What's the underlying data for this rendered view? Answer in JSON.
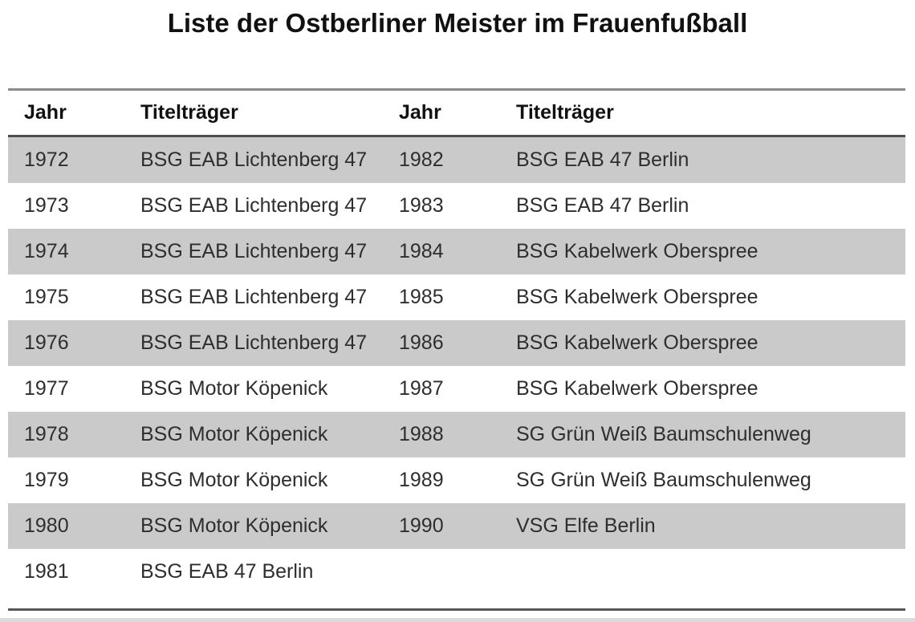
{
  "title": "Liste der Ostberliner Meister im Frauenfußball",
  "table": {
    "headers": [
      "Jahr",
      "Titelträger",
      "Jahr",
      "Titelträger"
    ],
    "rows": [
      {
        "year_left": "1972",
        "club_left": "BSG EAB Lichtenberg 47",
        "year_right": "1982",
        "club_right": "BSG EAB 47 Berlin"
      },
      {
        "year_left": "1973",
        "club_left": "BSG EAB Lichtenberg 47",
        "year_right": "1983",
        "club_right": "BSG EAB 47 Berlin"
      },
      {
        "year_left": "1974",
        "club_left": "BSG EAB Lichtenberg 47",
        "year_right": "1984",
        "club_right": "BSG Kabelwerk Oberspree"
      },
      {
        "year_left": "1975",
        "club_left": "BSG EAB Lichtenberg 47",
        "year_right": "1985",
        "club_right": "BSG Kabelwerk Oberspree"
      },
      {
        "year_left": "1976",
        "club_left": "BSG EAB Lichtenberg 47",
        "year_right": "1986",
        "club_right": "BSG Kabelwerk Oberspree"
      },
      {
        "year_left": "1977",
        "club_left": "BSG Motor Köpenick",
        "year_right": "1987",
        "club_right": "BSG Kabelwerk Oberspree"
      },
      {
        "year_left": "1978",
        "club_left": "BSG Motor Köpenick",
        "year_right": "1988",
        "club_right": "SG Grün Weiß Baumschulenweg"
      },
      {
        "year_left": "1979",
        "club_left": "BSG Motor Köpenick",
        "year_right": "1989",
        "club_right": "SG Grün Weiß Baumschulenweg"
      },
      {
        "year_left": "1980",
        "club_left": "BSG Motor Köpenick",
        "year_right": "1990",
        "club_right": "VSG Elfe Berlin"
      },
      {
        "year_left": "1981",
        "club_left": "BSG EAB 47 Berlin",
        "year_right": "",
        "club_right": ""
      }
    ]
  },
  "chart_data": {
    "type": "table",
    "title": "Liste der Ostberliner Meister im Frauenfußball",
    "columns": [
      "Jahr",
      "Titelträger",
      "Jahr",
      "Titelträger"
    ],
    "records": [
      [
        "1972",
        "BSG EAB Lichtenberg 47",
        "1982",
        "BSG EAB 47 Berlin"
      ],
      [
        "1973",
        "BSG EAB Lichtenberg 47",
        "1983",
        "BSG EAB 47 Berlin"
      ],
      [
        "1974",
        "BSG EAB Lichtenberg 47",
        "1984",
        "BSG Kabelwerk Oberspree"
      ],
      [
        "1975",
        "BSG EAB Lichtenberg 47",
        "1985",
        "BSG Kabelwerk Oberspree"
      ],
      [
        "1976",
        "BSG EAB Lichtenberg 47",
        "1986",
        "BSG Kabelwerk Oberspree"
      ],
      [
        "1977",
        "BSG Motor Köpenick",
        "1987",
        "BSG Kabelwerk Oberspree"
      ],
      [
        "1978",
        "BSG Motor Köpenick",
        "1988",
        "SG Grün Weiß Baumschulenweg"
      ],
      [
        "1979",
        "BSG Motor Köpenick",
        "1989",
        "SG Grün Weiß Baumschulenweg"
      ],
      [
        "1980",
        "BSG Motor Köpenick",
        "1990",
        "VSG Elfe Berlin"
      ],
      [
        "1981",
        "BSG EAB 47 Berlin",
        "",
        ""
      ]
    ]
  },
  "colors": {
    "stripe_gray": "#cacaca",
    "top_rule": "#8a8a8a",
    "header_rule": "#4e4e4e",
    "bottom_rule": "#575757",
    "text": "#2e2e2e"
  }
}
